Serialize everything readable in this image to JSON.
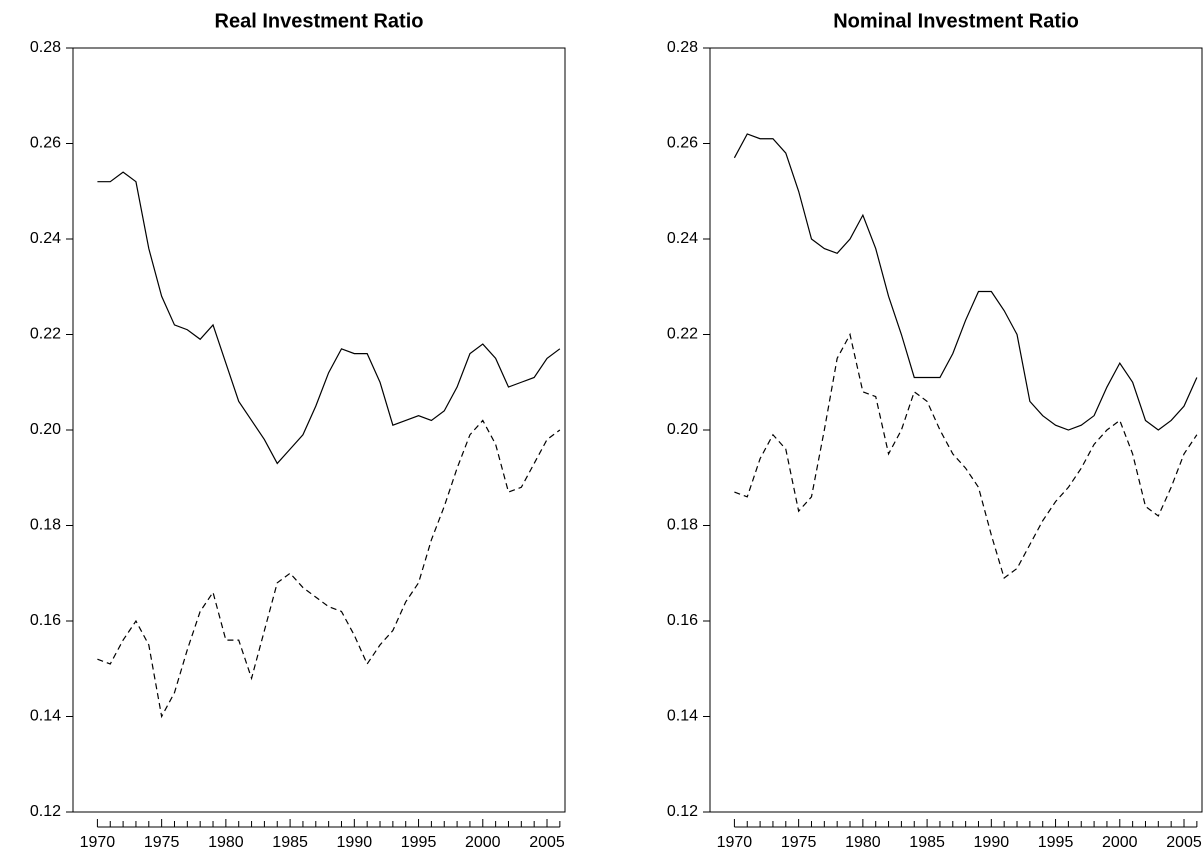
{
  "chart_data": [
    {
      "type": "line",
      "title": "Real Investment Ratio",
      "x": [
        1970,
        1971,
        1972,
        1973,
        1974,
        1975,
        1976,
        1977,
        1978,
        1979,
        1980,
        1981,
        1982,
        1983,
        1984,
        1985,
        1986,
        1987,
        1988,
        1989,
        1990,
        1991,
        1992,
        1993,
        1994,
        1995,
        1996,
        1997,
        1998,
        1999,
        2000,
        2001,
        2002,
        2003,
        2004,
        2005,
        2006
      ],
      "series": [
        {
          "color": "#000000",
          "dash": false,
          "values": [
            0.252,
            0.252,
            0.254,
            0.252,
            0.238,
            0.228,
            0.222,
            0.221,
            0.219,
            0.222,
            0.214,
            0.206,
            0.202,
            0.198,
            0.193,
            0.196,
            0.199,
            0.205,
            0.212,
            0.217,
            0.216,
            0.216,
            0.21,
            0.201,
            0.202,
            0.203,
            0.202,
            0.204,
            0.209,
            0.216,
            0.218,
            0.215,
            0.209,
            0.21,
            0.211,
            0.215,
            0.217
          ]
        },
        {
          "color": "#000000",
          "dash": true,
          "values": [
            0.152,
            0.151,
            0.156,
            0.16,
            0.155,
            0.14,
            0.145,
            0.154,
            0.162,
            0.166,
            0.156,
            0.156,
            0.148,
            0.158,
            0.168,
            0.17,
            0.167,
            0.165,
            0.163,
            0.162,
            0.157,
            0.151,
            0.155,
            0.158,
            0.164,
            0.168,
            0.177,
            0.184,
            0.192,
            0.199,
            0.202,
            0.197,
            0.187,
            0.188,
            0.193,
            0.198,
            0.2
          ]
        }
      ],
      "xlim": [
        1968.1,
        2006.4
      ],
      "xticks": [
        1970,
        1975,
        1980,
        1985,
        1990,
        1995,
        2000,
        2005
      ],
      "xminorticks": [
        1971,
        1972,
        1973,
        1974,
        1976,
        1977,
        1978,
        1979,
        1981,
        1982,
        1983,
        1984,
        1986,
        1987,
        1988,
        1989,
        1991,
        1992,
        1993,
        1994,
        1996,
        1997,
        1998,
        1999,
        2001,
        2002,
        2003,
        2004,
        2006
      ],
      "ylim": [
        0.12,
        0.28
      ],
      "yticks": [
        0.12,
        0.14,
        0.16,
        0.18,
        {
          "value": 0.2,
          "label": "0.20"
        },
        0.22,
        0.24,
        0.26,
        0.28
      ]
    },
    {
      "type": "line",
      "title": "Nominal Investment Ratio",
      "x": [
        1970,
        1971,
        1972,
        1973,
        1974,
        1975,
        1976,
        1977,
        1978,
        1979,
        1980,
        1981,
        1982,
        1983,
        1984,
        1985,
        1986,
        1987,
        1988,
        1989,
        1990,
        1991,
        1992,
        1993,
        1994,
        1995,
        1996,
        1997,
        1998,
        1999,
        2000,
        2001,
        2002,
        2003,
        2004,
        2005,
        2006
      ],
      "series": [
        {
          "color": "#000000",
          "dash": false,
          "values": [
            0.257,
            0.262,
            0.261,
            0.261,
            0.258,
            0.25,
            0.24,
            0.238,
            0.237,
            0.24,
            0.245,
            0.238,
            0.228,
            0.22,
            0.211,
            0.211,
            0.211,
            0.216,
            0.223,
            0.229,
            0.229,
            0.225,
            0.22,
            0.206,
            0.203,
            0.201,
            0.2,
            0.201,
            0.203,
            0.209,
            0.214,
            0.21,
            0.202,
            0.2,
            0.202,
            0.205,
            0.211
          ]
        },
        {
          "color": "#000000",
          "dash": true,
          "values": [
            0.187,
            0.186,
            0.194,
            0.199,
            0.196,
            0.183,
            0.186,
            0.2,
            0.215,
            0.22,
            0.208,
            0.207,
            0.195,
            0.2,
            0.208,
            0.206,
            0.2,
            0.195,
            0.192,
            0.188,
            0.178,
            0.169,
            0.171,
            0.176,
            0.181,
            0.185,
            0.188,
            0.192,
            0.197,
            0.2,
            0.202,
            0.195,
            0.184,
            0.182,
            0.188,
            0.195,
            0.199
          ]
        }
      ],
      "xlim": [
        1968.1,
        2006.4
      ],
      "xticks": [
        1970,
        1975,
        1980,
        1985,
        1990,
        1995,
        2000,
        2005
      ],
      "xminorticks": [
        1971,
        1972,
        1973,
        1974,
        1976,
        1977,
        1978,
        1979,
        1981,
        1982,
        1983,
        1984,
        1986,
        1987,
        1988,
        1989,
        1991,
        1992,
        1993,
        1994,
        1996,
        1997,
        1998,
        1999,
        2001,
        2002,
        2003,
        2004,
        2006
      ],
      "ylim": [
        0.12,
        0.28
      ],
      "yticks": [
        0.12,
        0.14,
        0.16,
        0.18,
        {
          "value": 0.2,
          "label": "0.20"
        },
        0.22,
        0.24,
        0.26,
        0.28
      ]
    }
  ]
}
